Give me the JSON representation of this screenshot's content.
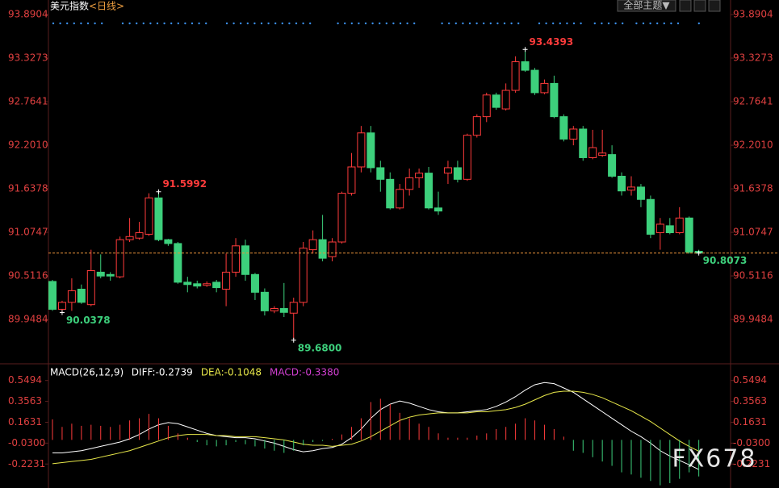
{
  "header": {
    "title": "美元指数",
    "period": "<日线>",
    "theme_button": "全部主题▼"
  },
  "watermark": "FX678",
  "chart_data": [
    {
      "type": "candlestick",
      "open": [
        90.44,
        90.08,
        90.17,
        90.34,
        90.14,
        90.56,
        90.53,
        90.5,
        90.98,
        91.0,
        91.05,
        91.52,
        90.98,
        90.93,
        90.43,
        90.41,
        90.39,
        90.43,
        90.34,
        90.56,
        90.9,
        90.53,
        90.3,
        90.06,
        90.09,
        90.03,
        90.17,
        90.85,
        90.98,
        90.76,
        90.95,
        91.58,
        91.92,
        92.36,
        91.91,
        91.76,
        91.39,
        91.63,
        91.78,
        91.84,
        91.39,
        91.84,
        91.91,
        91.76,
        92.33,
        92.57,
        92.85,
        92.67,
        92.91,
        93.28,
        93.17,
        92.88,
        93.0,
        92.57,
        92.28,
        92.41,
        92.04,
        92.07,
        92.08,
        91.8,
        91.62,
        91.66,
        91.5,
        91.07,
        91.16,
        91.07,
        91.26,
        90.83
      ],
      "high": [
        90.46,
        90.19,
        90.48,
        90.4,
        90.85,
        90.79,
        90.56,
        91.02,
        91.26,
        91.21,
        91.58,
        91.5992,
        90.99,
        90.95,
        90.5,
        90.45,
        90.44,
        90.46,
        90.8,
        91.0,
        90.98,
        90.55,
        90.35,
        90.12,
        90.42,
        90.23,
        90.95,
        91.1,
        91.3,
        91.0,
        91.6,
        92.1,
        92.45,
        92.45,
        92.0,
        91.85,
        91.7,
        91.9,
        91.9,
        91.92,
        91.6,
        92.0,
        92.0,
        92.35,
        92.6,
        92.88,
        92.88,
        93.0,
        93.35,
        93.4393,
        93.2,
        93.05,
        93.1,
        92.6,
        92.45,
        92.45,
        92.4,
        92.4,
        92.2,
        91.85,
        91.8,
        91.7,
        91.55,
        91.26,
        91.26,
        91.4,
        91.28,
        90.85
      ],
      "low": [
        90.06,
        90.0378,
        90.06,
        90.15,
        90.12,
        90.48,
        90.45,
        90.48,
        90.95,
        90.98,
        91.03,
        90.96,
        90.9,
        90.41,
        90.3,
        90.35,
        90.37,
        90.3,
        90.12,
        90.5,
        90.45,
        90.2,
        90.0,
        90.03,
        89.98,
        89.68,
        90.12,
        90.8,
        90.7,
        90.7,
        90.93,
        91.55,
        91.85,
        91.85,
        91.6,
        91.37,
        91.37,
        91.55,
        91.65,
        91.37,
        91.3,
        91.7,
        91.72,
        91.74,
        92.3,
        92.5,
        92.66,
        92.65,
        92.88,
        93.15,
        92.85,
        92.86,
        92.55,
        92.25,
        92.2,
        92.0,
        92.02,
        92.05,
        91.78,
        91.55,
        91.55,
        91.4,
        91.0,
        90.85,
        91.05,
        91.05,
        90.8,
        90.8
      ],
      "close": [
        90.08,
        90.17,
        90.32,
        90.17,
        90.58,
        90.51,
        90.51,
        90.98,
        91.02,
        91.07,
        91.52,
        90.98,
        90.93,
        90.43,
        90.4,
        90.38,
        90.41,
        90.36,
        90.56,
        90.9,
        90.53,
        90.3,
        90.06,
        90.09,
        90.04,
        90.17,
        90.87,
        90.98,
        90.74,
        90.95,
        91.58,
        91.92,
        92.36,
        91.91,
        91.76,
        91.39,
        91.63,
        91.78,
        91.84,
        91.39,
        91.35,
        91.91,
        91.76,
        92.33,
        92.57,
        92.85,
        92.69,
        92.91,
        93.28,
        93.17,
        92.88,
        93.0,
        92.57,
        92.28,
        92.41,
        92.04,
        92.17,
        92.1,
        91.8,
        91.61,
        91.66,
        91.5,
        91.05,
        91.18,
        91.07,
        91.26,
        90.82,
        90.8073
      ],
      "up_color": "#ff3b3b",
      "down_color": "#3dd07c",
      "ylim": [
        89.386,
        93.8904
      ],
      "yticks": [
        93.8904,
        93.3273,
        92.7641,
        {
          "value": 92.201,
          "label": "92.2010"
        },
        91.6378,
        91.0747,
        90.5116,
        89.9484
      ],
      "annotations": [
        {
          "value": 91.5992,
          "label": "91.5992",
          "color": "#ff3b3b"
        },
        {
          "value": 90.0378,
          "label": "90.0378",
          "color": "#3dd07c"
        },
        {
          "value": 89.68,
          "label": "89.6800",
          "color": "#3dd07c"
        },
        {
          "value": 93.4393,
          "label": "93.4393",
          "color": "#ff3b3b"
        },
        {
          "value": 90.8073,
          "label": "90.8073",
          "color": "#3dd07c"
        }
      ],
      "last_line_color": "#e8923a"
    },
    {
      "type": "macd",
      "title": "MACD(26,12,9)",
      "series": [
        {
          "label": "DIFF:-0.2739",
          "color": "#ffffff",
          "values": [
            -0.12,
            -0.12,
            -0.11,
            -0.1,
            -0.08,
            -0.06,
            -0.04,
            -0.02,
            0.01,
            0.05,
            0.1,
            0.14,
            0.16,
            0.15,
            0.12,
            0.09,
            0.06,
            0.04,
            0.03,
            0.02,
            0.02,
            0.01,
            -0.01,
            -0.03,
            -0.06,
            -0.09,
            -0.11,
            -0.1,
            -0.08,
            -0.07,
            -0.04,
            0.02,
            0.1,
            0.2,
            0.28,
            0.33,
            0.36,
            0.34,
            0.31,
            0.28,
            0.26,
            0.25,
            0.25,
            0.26,
            0.27,
            0.28,
            0.31,
            0.35,
            0.4,
            0.46,
            0.51,
            0.53,
            0.52,
            0.48,
            0.44,
            0.38,
            0.32,
            0.26,
            0.2,
            0.14,
            0.08,
            0.03,
            -0.03,
            -0.1,
            -0.15,
            -0.19,
            -0.23,
            -0.2739
          ]
        },
        {
          "label": "DEA:-0.1048",
          "color": "#e8e84a",
          "values": [
            -0.22,
            -0.21,
            -0.2,
            -0.19,
            -0.18,
            -0.16,
            -0.14,
            -0.12,
            -0.1,
            -0.07,
            -0.04,
            -0.01,
            0.02,
            0.04,
            0.05,
            0.05,
            0.05,
            0.04,
            0.04,
            0.03,
            0.03,
            0.03,
            0.02,
            0.01,
            0.0,
            -0.02,
            -0.04,
            -0.05,
            -0.05,
            -0.06,
            -0.05,
            -0.04,
            -0.01,
            0.03,
            0.08,
            0.13,
            0.18,
            0.21,
            0.23,
            0.24,
            0.25,
            0.25,
            0.25,
            0.25,
            0.26,
            0.26,
            0.27,
            0.28,
            0.3,
            0.33,
            0.37,
            0.41,
            0.44,
            0.45,
            0.45,
            0.44,
            0.42,
            0.39,
            0.35,
            0.31,
            0.27,
            0.22,
            0.17,
            0.11,
            0.05,
            -0.01,
            -0.06,
            -0.1048
          ]
        },
        {
          "label": "MACD:-0.3380",
          "color": "#d23fd2",
          "up_color": "#ff3b3b",
          "down_color": "#3dd07c",
          "values": [
            0.19,
            0.12,
            0.15,
            0.13,
            0.14,
            0.13,
            0.12,
            0.14,
            0.18,
            0.2,
            0.24,
            0.2,
            0.13,
            0.06,
            0.02,
            -0.02,
            -0.05,
            -0.06,
            -0.05,
            -0.02,
            -0.04,
            -0.06,
            -0.08,
            -0.1,
            -0.12,
            -0.1,
            -0.05,
            -0.02,
            -0.01,
            0.01,
            0.05,
            0.12,
            0.2,
            0.35,
            0.38,
            0.33,
            0.25,
            0.2,
            0.15,
            0.12,
            0.06,
            0.02,
            0.02,
            0.02,
            0.04,
            0.06,
            0.1,
            0.12,
            0.15,
            0.2,
            0.18,
            0.14,
            0.1,
            0.03,
            -0.1,
            -0.12,
            -0.16,
            -0.2,
            -0.24,
            -0.3,
            -0.32,
            -0.35,
            -0.38,
            -0.42,
            -0.4,
            -0.36,
            -0.3,
            -0.338
          ]
        }
      ],
      "ylim": [
        -0.43,
        0.674
      ],
      "yticks": [
        0.5494,
        0.3563,
        0.1631,
        {
          "value": -0.03,
          "label": "-0.0300"
        },
        -0.2231
      ]
    }
  ]
}
